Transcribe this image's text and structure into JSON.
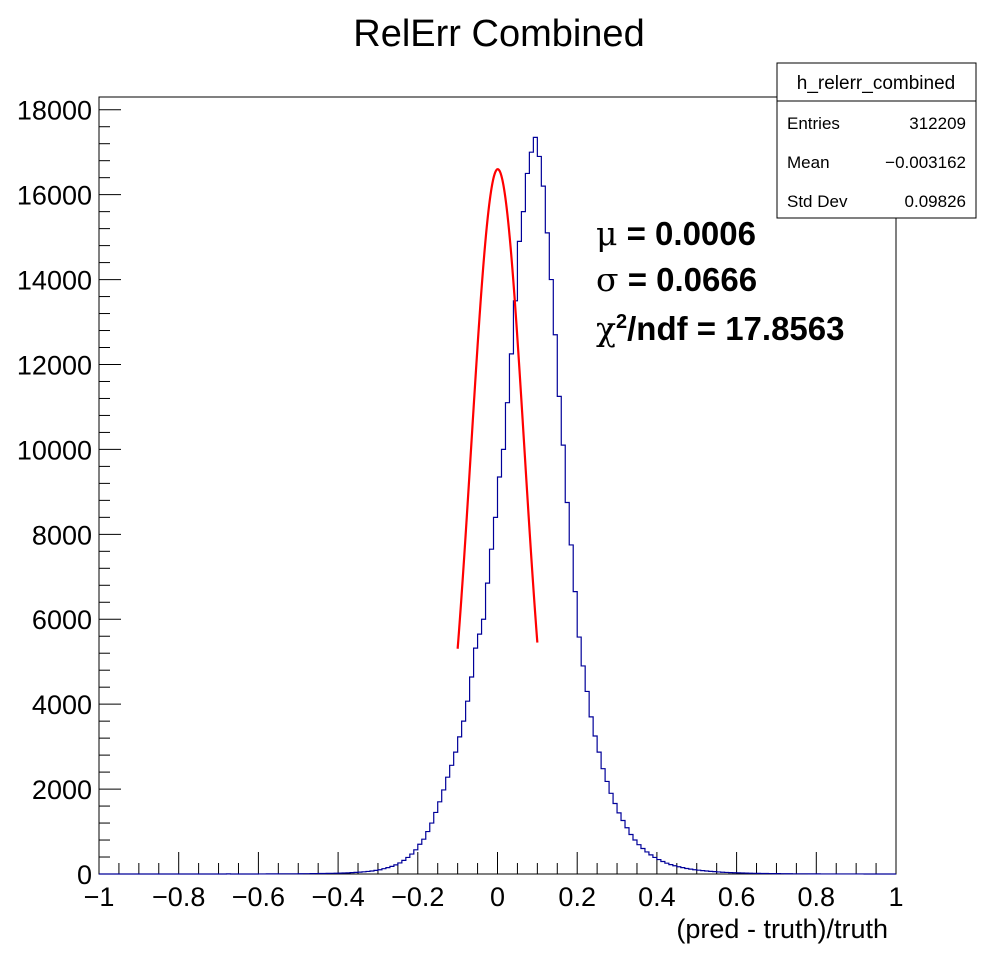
{
  "chart_data": {
    "type": "histogram",
    "title": "RelErr Combined",
    "xlabel": "(pred - truth)/truth",
    "ylabel": "",
    "xlim": [
      -1,
      1
    ],
    "ylim": [
      0,
      18300
    ],
    "x_ticks": [
      -1,
      -0.8,
      -0.6,
      -0.4,
      -0.2,
      0,
      0.2,
      0.4,
      0.6,
      0.8,
      1
    ],
    "x_tick_labels": [
      "−1",
      "−0.8",
      "−0.6",
      "−0.4",
      "−0.2",
      "0",
      "0.2",
      "0.4",
      "0.6",
      "0.8",
      "1"
    ],
    "y_ticks": [
      0,
      2000,
      4000,
      6000,
      8000,
      10000,
      12000,
      14000,
      16000,
      18000
    ],
    "y_tick_labels": [
      "0",
      "2000",
      "4000",
      "6000",
      "8000",
      "10000",
      "12000",
      "14000",
      "16000",
      "18000"
    ],
    "bin_width": 0.01,
    "bin_edges_range": [
      -1,
      1
    ],
    "bin_counts": [
      0,
      0,
      0,
      0,
      0,
      0,
      0,
      0,
      0,
      0,
      0,
      0,
      0,
      0,
      0,
      0,
      0,
      0,
      0,
      0,
      0,
      0,
      0,
      0,
      0,
      0,
      0,
      0,
      0,
      0,
      0,
      0,
      3,
      0,
      0,
      0,
      0,
      0,
      0,
      0,
      2,
      2,
      3,
      3,
      3,
      4,
      4,
      4,
      5,
      5,
      6,
      7,
      7,
      8,
      10,
      11,
      12,
      14,
      16,
      18,
      20,
      23,
      27,
      32,
      38,
      44,
      52,
      60,
      70,
      85,
      100,
      125,
      150,
      180,
      215,
      260,
      320,
      390,
      470,
      570,
      700,
      820,
      1000,
      1200,
      1450,
      1700,
      1980,
      2280,
      2560,
      2870,
      3230,
      3600,
      4070,
      4640,
      5320,
      5650,
      6000,
      6850,
      7650,
      8400,
      9350,
      10000,
      11100,
      12250,
      13500,
      14900,
      15600,
      16500,
      17000,
      17350,
      16900,
      16200,
      15100,
      14000,
      12700,
      11250,
      10100,
      8750,
      7750,
      6650,
      5580,
      4900,
      4300,
      3700,
      3250,
      2870,
      2480,
      2180,
      1900,
      1660,
      1440,
      1260,
      1090,
      930,
      800,
      690,
      600,
      520,
      450,
      390,
      340,
      295,
      255,
      220,
      195,
      170,
      150,
      130,
      115,
      100,
      90,
      80,
      70,
      62,
      55,
      48,
      42,
      37,
      33,
      29,
      26,
      23,
      20,
      18,
      16,
      14,
      12,
      11,
      10,
      9,
      8,
      7,
      6,
      6,
      5,
      5,
      4,
      4,
      3,
      3,
      3,
      2,
      2,
      2,
      2,
      2,
      1,
      1,
      1,
      1,
      1,
      1,
      0,
      0,
      0,
      0,
      0,
      0,
      0,
      0
    ],
    "series": [
      {
        "type": "step",
        "color": "#000099"
      },
      {
        "type": "gaussian-fit",
        "color": "#ff0000",
        "amplitude": 16600,
        "mean": 0.0006,
        "sigma": 0.0666,
        "range": [
          -0.1,
          0.1
        ]
      }
    ],
    "grid": false,
    "legend": "none"
  },
  "stats_box": {
    "name": "h_relerr_combined",
    "rows": [
      {
        "label": "Entries",
        "value": "312209"
      },
      {
        "label": "Mean",
        "value": "−0.003162"
      },
      {
        "label": "Std Dev",
        "value": "0.09826"
      }
    ]
  },
  "fit_annotation": {
    "mu_symbol": "μ",
    "mu_text": " = 0.0006",
    "sigma_symbol": "σ",
    "sigma_text": " = 0.0666",
    "chi_symbol": "χ",
    "chi_sup": "2",
    "chi_text": "/ndf = 17.8563"
  },
  "colors": {
    "histogram": "#000099",
    "fit": "#ff0000",
    "axes": "#000000"
  }
}
